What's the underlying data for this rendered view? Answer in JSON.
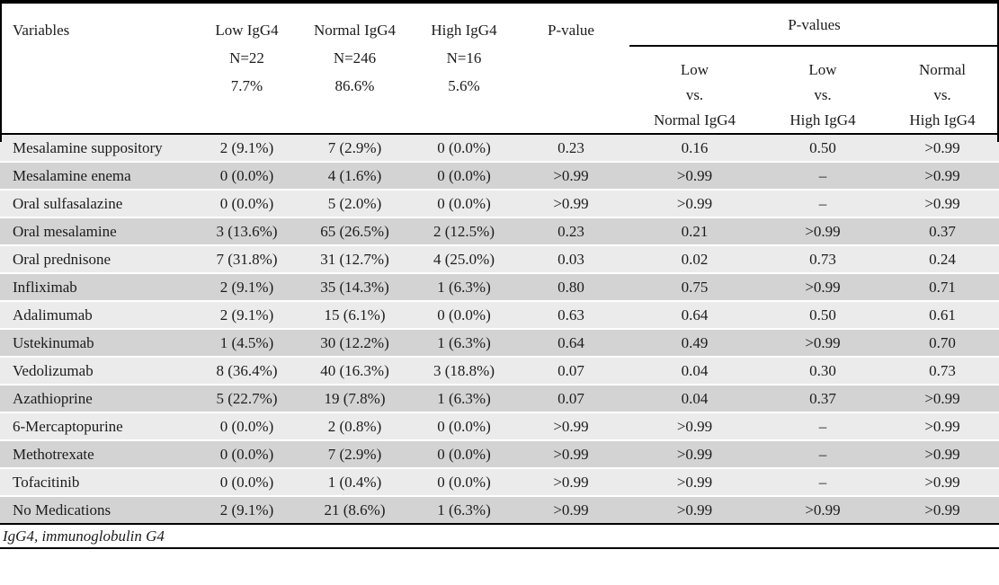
{
  "table": {
    "header": {
      "variables_label": "Variables",
      "group_columns": [
        {
          "label": "Low IgG4",
          "n": "N=22",
          "pct": "7.7%"
        },
        {
          "label": "Normal IgG4",
          "n": "N=246",
          "pct": "86.6%"
        },
        {
          "label": "High IgG4",
          "n": "N=16",
          "pct": "5.6%"
        }
      ],
      "pvalue_label": "P-value",
      "pvalues_group_label": "P-values",
      "comparison_columns": [
        {
          "line1": "Low",
          "line2": "vs.",
          "line3": "Normal IgG4"
        },
        {
          "line1": "Low",
          "line2": "vs.",
          "line3": "High IgG4"
        },
        {
          "line1": "Normal",
          "line2": "vs.",
          "line3": "High IgG4"
        }
      ]
    },
    "rows": [
      [
        "Mesalamine suppository",
        "2 (9.1%)",
        "7 (2.9%)",
        "0 (0.0%)",
        "0.23",
        "0.16",
        "0.50",
        ">0.99"
      ],
      [
        "Mesalamine enema",
        "0 (0.0%)",
        "4 (1.6%)",
        "0 (0.0%)",
        ">0.99",
        ">0.99",
        "–",
        ">0.99"
      ],
      [
        "Oral sulfasalazine",
        "0 (0.0%)",
        "5 (2.0%)",
        "0 (0.0%)",
        ">0.99",
        ">0.99",
        "–",
        ">0.99"
      ],
      [
        "Oral mesalamine",
        "3 (13.6%)",
        "65 (26.5%)",
        "2 (12.5%)",
        "0.23",
        "0.21",
        ">0.99",
        "0.37"
      ],
      [
        "Oral prednisone",
        "7 (31.8%)",
        "31 (12.7%)",
        "4 (25.0%)",
        "0.03",
        "0.02",
        "0.73",
        "0.24"
      ],
      [
        "Infliximab",
        "2 (9.1%)",
        "35 (14.3%)",
        "1 (6.3%)",
        "0.80",
        "0.75",
        ">0.99",
        "0.71"
      ],
      [
        "Adalimumab",
        "2 (9.1%)",
        "15 (6.1%)",
        "0 (0.0%)",
        "0.63",
        "0.64",
        "0.50",
        "0.61"
      ],
      [
        "Ustekinumab",
        "1 (4.5%)",
        "30 (12.2%)",
        "1 (6.3%)",
        "0.64",
        "0.49",
        ">0.99",
        "0.70"
      ],
      [
        "Vedolizumab",
        "8 (36.4%)",
        "40 (16.3%)",
        "3 (18.8%)",
        "0.07",
        "0.04",
        "0.30",
        "0.73"
      ],
      [
        "Azathioprine",
        "5 (22.7%)",
        "19 (7.8%)",
        "1 (6.3%)",
        "0.07",
        "0.04",
        "0.37",
        ">0.99"
      ],
      [
        "6-Mercaptopurine",
        "0 (0.0%)",
        "2 (0.8%)",
        "0 (0.0%)",
        ">0.99",
        ">0.99",
        "–",
        ">0.99"
      ],
      [
        "Methotrexate",
        "0 (0.0%)",
        "7 (2.9%)",
        "0 (0.0%)",
        ">0.99",
        ">0.99",
        "–",
        ">0.99"
      ],
      [
        "Tofacitinib",
        "0 (0.0%)",
        "1 (0.4%)",
        "0 (0.0%)",
        ">0.99",
        ">0.99",
        "–",
        ">0.99"
      ],
      [
        "No Medications",
        "2 (9.1%)",
        "21 (8.6%)",
        "1 (6.3%)",
        ">0.99",
        ">0.99",
        ">0.99",
        ">0.99"
      ]
    ],
    "footnote": "IgG4, immunoglobulin G4"
  },
  "colors": {
    "row_light": "#ebebeb",
    "row_dark": "#d3d3d3",
    "border": "#000000",
    "text": "#1c1c1c"
  }
}
